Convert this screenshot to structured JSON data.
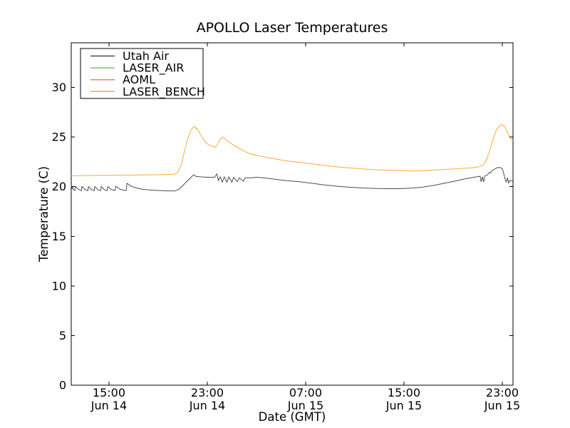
{
  "window": {
    "background": "#ffffff"
  },
  "chart_data": {
    "type": "line",
    "title": "APOLLO Laser Temperatures",
    "xlabel": "Date (GMT)",
    "ylabel": "Temperature (C)",
    "grid": false,
    "background": "#ffffff",
    "x_axis": {
      "unit": "hours since Jun 14 00:00 GMT",
      "range": [
        11.93,
        47.87
      ],
      "ticks": [
        {
          "t": 15,
          "time": "15:00",
          "date": "Jun 14"
        },
        {
          "t": 23,
          "time": "23:00",
          "date": "Jun 14"
        },
        {
          "t": 31,
          "time": "07:00",
          "date": "Jun 15"
        },
        {
          "t": 39,
          "time": "15:00",
          "date": "Jun 15"
        },
        {
          "t": 47,
          "time": "23:00",
          "date": "Jun 15"
        }
      ]
    },
    "y_axis": {
      "range": [
        0,
        34.5
      ],
      "ticks": [
        0,
        5,
        10,
        15,
        20,
        25,
        30
      ]
    },
    "legend": {
      "position": "upper left"
    },
    "series": [
      {
        "name": "Utah Air",
        "color": "#4d4d4d",
        "visible_in_plot": true,
        "points": [
          [
            11.93,
            20.1
          ],
          [
            11.98,
            19.8
          ],
          [
            12.03,
            20.0
          ],
          [
            12.1,
            19.7
          ],
          [
            12.22,
            19.62
          ],
          [
            12.27,
            20.05
          ],
          [
            12.5,
            19.75
          ],
          [
            12.75,
            19.6
          ],
          [
            12.8,
            20.02
          ],
          [
            13.05,
            19.72
          ],
          [
            13.28,
            19.6
          ],
          [
            13.33,
            20.02
          ],
          [
            13.57,
            19.72
          ],
          [
            13.8,
            19.6
          ],
          [
            13.85,
            20.02
          ],
          [
            14.1,
            19.7
          ],
          [
            14.32,
            19.6
          ],
          [
            14.37,
            20.02
          ],
          [
            14.62,
            19.7
          ],
          [
            14.85,
            19.6
          ],
          [
            14.9,
            20.02
          ],
          [
            15.2,
            19.7
          ],
          [
            15.5,
            19.62
          ],
          [
            15.56,
            20.05
          ],
          [
            15.9,
            19.75
          ],
          [
            16.25,
            19.65
          ],
          [
            16.4,
            19.62
          ],
          [
            16.46,
            20.35
          ],
          [
            16.8,
            20.05
          ],
          [
            17.2,
            19.88
          ],
          [
            17.7,
            19.75
          ],
          [
            18.2,
            19.68
          ],
          [
            19.0,
            19.62
          ],
          [
            19.8,
            19.58
          ],
          [
            20.4,
            19.58
          ],
          [
            20.7,
            19.75
          ],
          [
            21.0,
            20.1
          ],
          [
            21.3,
            20.5
          ],
          [
            21.6,
            20.85
          ],
          [
            21.84,
            21.15
          ],
          [
            21.92,
            21.2
          ],
          [
            22.05,
            21.05
          ],
          [
            22.4,
            21.0
          ],
          [
            23.0,
            20.95
          ],
          [
            23.6,
            20.95
          ],
          [
            23.78,
            21.3
          ],
          [
            23.9,
            20.6
          ],
          [
            24.05,
            21.0
          ],
          [
            24.22,
            20.45
          ],
          [
            24.38,
            21.0
          ],
          [
            24.6,
            20.45
          ],
          [
            24.75,
            21.0
          ],
          [
            25.0,
            20.45
          ],
          [
            25.15,
            20.95
          ],
          [
            25.45,
            20.5
          ],
          [
            25.6,
            20.9
          ],
          [
            25.95,
            20.55
          ],
          [
            26.05,
            20.9
          ],
          [
            26.6,
            20.9
          ],
          [
            27.0,
            20.95
          ],
          [
            27.6,
            20.9
          ],
          [
            28.5,
            20.75
          ],
          [
            29.5,
            20.6
          ],
          [
            30.5,
            20.5
          ],
          [
            31.5,
            20.35
          ],
          [
            32.5,
            20.18
          ],
          [
            33.5,
            20.05
          ],
          [
            34.5,
            19.95
          ],
          [
            35.5,
            19.88
          ],
          [
            36.5,
            19.83
          ],
          [
            37.5,
            19.8
          ],
          [
            38.5,
            19.8
          ],
          [
            39.5,
            19.85
          ],
          [
            40.5,
            19.95
          ],
          [
            41.5,
            20.15
          ],
          [
            42.5,
            20.4
          ],
          [
            43.3,
            20.6
          ],
          [
            44.0,
            20.8
          ],
          [
            44.7,
            20.95
          ],
          [
            45.2,
            21.05
          ],
          [
            45.28,
            20.5
          ],
          [
            45.38,
            21.0
          ],
          [
            45.48,
            20.5
          ],
          [
            45.58,
            21.1
          ],
          [
            45.8,
            21.2
          ],
          [
            45.95,
            21.45
          ],
          [
            46.05,
            21.4
          ],
          [
            46.15,
            21.6
          ],
          [
            46.35,
            21.75
          ],
          [
            46.55,
            21.9
          ],
          [
            46.75,
            21.95
          ],
          [
            46.9,
            21.9
          ],
          [
            47.0,
            21.8
          ],
          [
            47.1,
            21.4
          ],
          [
            47.22,
            20.8
          ],
          [
            47.32,
            20.45
          ],
          [
            47.42,
            20.9
          ],
          [
            47.52,
            20.35
          ],
          [
            47.62,
            20.65
          ],
          [
            47.87,
            20.55
          ]
        ]
      },
      {
        "name": "LASER_AIR",
        "color": "#7fbf7f",
        "visible_in_plot": false,
        "points": []
      },
      {
        "name": "AOML",
        "color": "#f07f7f",
        "visible_in_plot": false,
        "points": []
      },
      {
        "name": "LASER_BENCH",
        "color": "#ffaa33",
        "visible_in_plot": true,
        "points": [
          [
            11.93,
            21.1
          ],
          [
            13.0,
            21.12
          ],
          [
            15.0,
            21.15
          ],
          [
            17.0,
            21.18
          ],
          [
            19.0,
            21.2
          ],
          [
            20.3,
            21.25
          ],
          [
            20.6,
            21.45
          ],
          [
            20.9,
            22.3
          ],
          [
            21.15,
            23.6
          ],
          [
            21.4,
            24.8
          ],
          [
            21.65,
            25.6
          ],
          [
            21.85,
            26.0
          ],
          [
            21.97,
            26.1
          ],
          [
            22.04,
            25.85
          ],
          [
            22.12,
            25.95
          ],
          [
            22.3,
            25.6
          ],
          [
            22.6,
            24.9
          ],
          [
            22.9,
            24.4
          ],
          [
            23.3,
            24.1
          ],
          [
            23.65,
            23.98
          ],
          [
            23.73,
            24.1
          ],
          [
            23.8,
            24.2
          ],
          [
            24.0,
            24.7
          ],
          [
            24.25,
            25.0
          ],
          [
            24.45,
            24.85
          ],
          [
            24.7,
            24.55
          ],
          [
            25.0,
            24.3
          ],
          [
            25.4,
            24.0
          ],
          [
            25.9,
            23.65
          ],
          [
            26.4,
            23.35
          ],
          [
            27.0,
            23.15
          ],
          [
            27.6,
            23.0
          ],
          [
            28.5,
            22.8
          ],
          [
            29.5,
            22.6
          ],
          [
            30.5,
            22.45
          ],
          [
            31.5,
            22.3
          ],
          [
            32.5,
            22.15
          ],
          [
            33.5,
            22.0
          ],
          [
            34.5,
            21.9
          ],
          [
            35.5,
            21.8
          ],
          [
            36.5,
            21.72
          ],
          [
            37.5,
            21.67
          ],
          [
            38.5,
            21.63
          ],
          [
            39.5,
            21.6
          ],
          [
            40.5,
            21.62
          ],
          [
            41.5,
            21.68
          ],
          [
            42.5,
            21.75
          ],
          [
            43.5,
            21.82
          ],
          [
            44.5,
            21.9
          ],
          [
            45.1,
            22.0
          ],
          [
            45.45,
            22.2
          ],
          [
            45.7,
            22.7
          ],
          [
            45.95,
            23.5
          ],
          [
            46.15,
            24.4
          ],
          [
            46.35,
            25.2
          ],
          [
            46.55,
            25.8
          ],
          [
            46.75,
            26.1
          ],
          [
            46.95,
            26.25
          ],
          [
            47.1,
            26.2
          ],
          [
            47.25,
            25.9
          ],
          [
            47.45,
            25.4
          ],
          [
            47.65,
            24.9
          ],
          [
            47.87,
            24.6
          ]
        ]
      }
    ]
  }
}
